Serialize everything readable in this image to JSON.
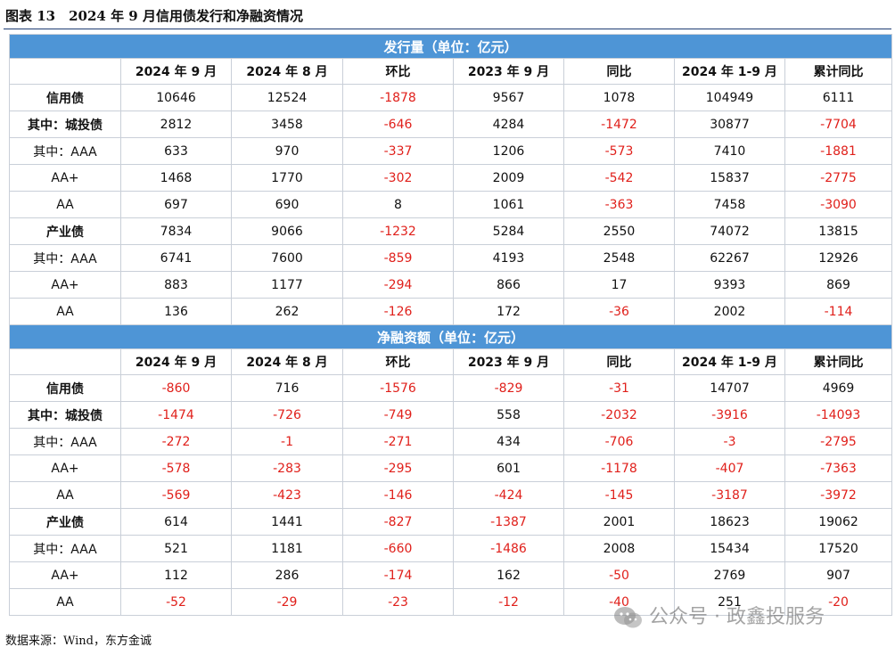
{
  "figure": {
    "title": "图表 13　2024 年 9 月信用债发行和净融资情况",
    "source": "数据来源：Wind，东方金诚",
    "watermark": "公众号 · 政鑫投服务"
  },
  "columns": [
    "",
    "2024 年 9 月",
    "2024 年 8 月",
    "环比",
    "2023 年 9 月",
    "同比",
    "2024 年 1-9 月",
    "累计同比"
  ],
  "sections": [
    {
      "title": "发行量（单位：亿元）",
      "rows": [
        {
          "label": "信用债",
          "values": [
            "10646",
            "12524",
            "-1878",
            "9567",
            "1078",
            "104949",
            "6111"
          ]
        },
        {
          "label": "其中：城投债",
          "values": [
            "2812",
            "3458",
            "-646",
            "4284",
            "-1472",
            "30877",
            "-7704"
          ]
        },
        {
          "label": "其中：AAA",
          "values": [
            "633",
            "970",
            "-337",
            "1206",
            "-573",
            "7410",
            "-1881"
          ]
        },
        {
          "label": "AA+",
          "values": [
            "1468",
            "1770",
            "-302",
            "2009",
            "-542",
            "15837",
            "-2775"
          ]
        },
        {
          "label": "AA",
          "values": [
            "697",
            "690",
            "8",
            "1061",
            "-363",
            "7458",
            "-3090"
          ]
        },
        {
          "label": "产业债",
          "values": [
            "7834",
            "9066",
            "-1232",
            "5284",
            "2550",
            "74072",
            "13815"
          ]
        },
        {
          "label": "其中：AAA",
          "values": [
            "6741",
            "7600",
            "-859",
            "4193",
            "2548",
            "62267",
            "12926"
          ]
        },
        {
          "label": "AA+",
          "values": [
            "883",
            "1177",
            "-294",
            "866",
            "17",
            "9393",
            "869"
          ]
        },
        {
          "label": "AA",
          "values": [
            "136",
            "262",
            "-126",
            "172",
            "-36",
            "2002",
            "-114"
          ]
        }
      ]
    },
    {
      "title": "净融资额（单位：亿元）",
      "rows": [
        {
          "label": "信用债",
          "values": [
            "-860",
            "716",
            "-1576",
            "-829",
            "-31",
            "14707",
            "4969"
          ]
        },
        {
          "label": "其中：城投债",
          "values": [
            "-1474",
            "-726",
            "-749",
            "558",
            "-2032",
            "-3916",
            "-14093"
          ]
        },
        {
          "label": "其中：AAA",
          "values": [
            "-272",
            "-1",
            "-271",
            "434",
            "-706",
            "-3",
            "-2795"
          ]
        },
        {
          "label": "AA+",
          "values": [
            "-578",
            "-283",
            "-295",
            "601",
            "-1178",
            "-407",
            "-7363"
          ]
        },
        {
          "label": "AA",
          "values": [
            "-569",
            "-423",
            "-146",
            "-424",
            "-145",
            "-3187",
            "-3972"
          ]
        },
        {
          "label": "产业债",
          "values": [
            "614",
            "1441",
            "-827",
            "-1387",
            "2001",
            "18623",
            "19062"
          ]
        },
        {
          "label": "其中：AAA",
          "values": [
            "521",
            "1181",
            "-660",
            "-1486",
            "2008",
            "15434",
            "17520"
          ]
        },
        {
          "label": "AA+",
          "values": [
            "112",
            "286",
            "-174",
            "162",
            "-50",
            "2769",
            "907"
          ]
        },
        {
          "label": "AA",
          "values": [
            "-52",
            "-29",
            "-23",
            "-12",
            "-40",
            "251",
            "-20"
          ]
        }
      ]
    }
  ],
  "colors": {
    "header_bg": "#4e95d6",
    "negative": "#e0201b",
    "title_rule": "#1f3d73"
  }
}
